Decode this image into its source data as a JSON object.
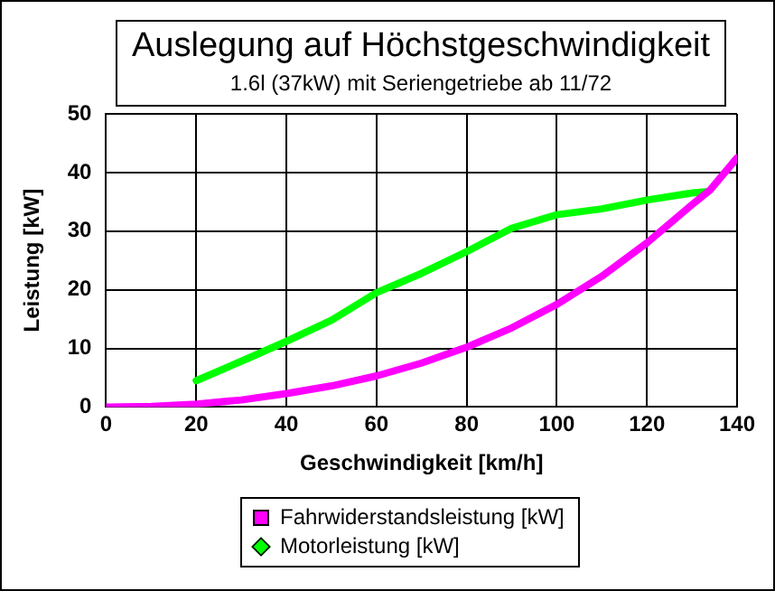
{
  "chart_data": {
    "type": "line",
    "title": "Auslegung auf Höchstgeschwindigkeit",
    "subtitle": "1.6l (37kW) mit Seriengetriebe ab 11/72",
    "xlabel": "Geschwindigkeit [km/h]",
    "ylabel": "Leistung [kW]",
    "xlim": [
      0,
      140
    ],
    "xticks": [
      0,
      20,
      40,
      60,
      80,
      100,
      120,
      140
    ],
    "ylim": [
      0,
      50
    ],
    "yticks": [
      0,
      10,
      20,
      30,
      40,
      50
    ],
    "grid": true,
    "legend": "bottom",
    "marker": "none",
    "line_style": "solid",
    "series": [
      {
        "name": "Fahrwiderstandsleistung [kW]",
        "color": "#ff00ff",
        "x": [
          0,
          10,
          20,
          30,
          40,
          50,
          60,
          70,
          80,
          90,
          100,
          110,
          120,
          130,
          134,
          140
        ],
        "values": [
          0,
          0.1,
          0.5,
          1.2,
          2.3,
          3.6,
          5.3,
          7.5,
          10.2,
          13.5,
          17.5,
          22.3,
          28,
          34.5,
          37,
          42.5
        ]
      },
      {
        "name": "Motorleistung [kW]",
        "color": "#00ff00",
        "x": [
          20,
          30,
          40,
          50,
          60,
          70,
          80,
          90,
          100,
          110,
          120,
          130,
          133
        ],
        "values": [
          4.5,
          7.8,
          11.2,
          14.8,
          19.5,
          22.8,
          26.5,
          30.5,
          32.8,
          33.8,
          35.3,
          36.5,
          36.7
        ]
      }
    ]
  }
}
